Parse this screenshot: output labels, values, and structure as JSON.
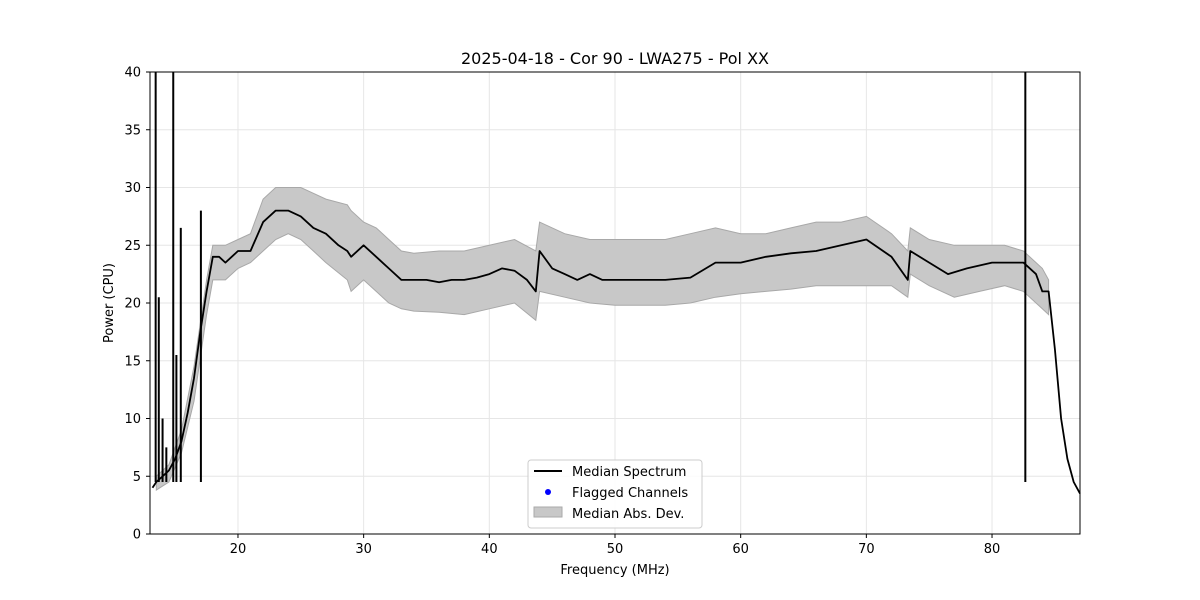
{
  "chart_data": {
    "type": "line",
    "title": "2025-04-18 - Cor 90 - LWA275 - Pol XX",
    "xlabel": "Frequency (MHz)",
    "ylabel": "Power (CPU)",
    "xlim": [
      13.0,
      87.0
    ],
    "ylim": [
      0,
      40
    ],
    "xticks": [
      20,
      30,
      40,
      50,
      60,
      70,
      80
    ],
    "yticks": [
      0,
      5,
      10,
      15,
      20,
      25,
      30,
      35,
      40
    ],
    "grid": true,
    "legend_position": "bottom-center",
    "legend": [
      {
        "label": "Median Spectrum",
        "kind": "line",
        "color": "#000000"
      },
      {
        "label": "Flagged Channels",
        "kind": "marker",
        "color": "#0000ff"
      },
      {
        "label": "Median Abs. Dev.",
        "kind": "patch",
        "color": "#c8c8c8"
      }
    ],
    "series": [
      {
        "name": "Median Spectrum",
        "color": "#000000",
        "x": [
          13.2,
          13.5,
          14.0,
          14.5,
          15.0,
          15.5,
          16.0,
          16.5,
          17.0,
          17.5,
          18.0,
          18.5,
          19.0,
          19.5,
          20.0,
          21.0,
          22.0,
          23.0,
          24.0,
          25.0,
          26.0,
          27.0,
          28.0,
          28.7,
          29.0,
          30.0,
          31.0,
          32.0,
          33.0,
          34.0,
          35.0,
          36.0,
          37.0,
          38.0,
          39.0,
          40.0,
          41.0,
          42.0,
          43.0,
          43.7,
          44.0,
          45.0,
          46.0,
          47.0,
          48.0,
          49.0,
          50.0,
          52.0,
          54.0,
          56.0,
          58.0,
          60.0,
          62.0,
          64.0,
          66.0,
          68.0,
          70.0,
          72.0,
          73.3,
          73.5,
          75.0,
          76.5,
          78.0,
          80.0,
          81.5,
          82.5,
          83.5,
          84.0,
          84.5,
          85.0,
          85.5,
          86.0,
          86.5,
          87.0
        ],
        "y": [
          4.0,
          4.5,
          5.0,
          5.5,
          6.5,
          8.0,
          10.5,
          13.5,
          17.5,
          21.0,
          24.0,
          24.0,
          23.5,
          24.0,
          24.5,
          24.5,
          27.0,
          28.0,
          28.0,
          27.5,
          26.5,
          26.0,
          25.0,
          24.5,
          24.0,
          25.0,
          24.0,
          23.0,
          22.0,
          22.0,
          22.0,
          21.8,
          22.0,
          22.0,
          22.2,
          22.5,
          23.0,
          22.8,
          22.0,
          21.0,
          24.5,
          23.0,
          22.5,
          22.0,
          22.5,
          22.0,
          22.0,
          22.0,
          22.0,
          22.2,
          23.5,
          23.5,
          24.0,
          24.3,
          24.5,
          25.0,
          25.5,
          24.0,
          22.0,
          24.5,
          23.5,
          22.5,
          23.0,
          23.5,
          23.5,
          23.5,
          22.5,
          21.0,
          21.0,
          16.0,
          10.0,
          6.5,
          4.5,
          3.5
        ]
      },
      {
        "name": "Median Abs. Dev. upper",
        "x": [
          13.5,
          14.5,
          15.5,
          16.5,
          17.5,
          18.0,
          19.0,
          20.0,
          21.0,
          22.0,
          23.0,
          24.0,
          25.0,
          26.0,
          27.0,
          28.7,
          29.0,
          30.0,
          31.0,
          32.0,
          33.0,
          34.0,
          36.0,
          38.0,
          40.0,
          42.0,
          43.7,
          44.0,
          46.0,
          48.0,
          50.0,
          52.0,
          54.0,
          56.0,
          58.0,
          60.0,
          62.0,
          64.0,
          66.0,
          68.0,
          70.0,
          72.0,
          73.3,
          73.5,
          75.0,
          77.0,
          79.0,
          81.0,
          82.5,
          84.0,
          84.5
        ],
        "y": [
          5.0,
          6.0,
          9.0,
          14.5,
          22.0,
          25.0,
          25.0,
          25.5,
          26.0,
          29.0,
          30.0,
          30.0,
          30.0,
          29.5,
          29.0,
          28.5,
          28.0,
          27.0,
          26.5,
          25.5,
          24.5,
          24.3,
          24.5,
          24.5,
          25.0,
          25.5,
          24.5,
          27.0,
          26.0,
          25.5,
          25.5,
          25.5,
          25.5,
          26.0,
          26.5,
          26.0,
          26.0,
          26.5,
          27.0,
          27.0,
          27.5,
          26.0,
          24.5,
          26.5,
          25.5,
          25.0,
          25.0,
          25.0,
          24.5,
          23.0,
          22.0
        ]
      },
      {
        "name": "Median Abs. Dev. lower",
        "x": [
          13.5,
          14.5,
          15.5,
          16.5,
          17.5,
          18.0,
          19.0,
          20.0,
          21.0,
          22.0,
          23.0,
          24.0,
          25.0,
          26.0,
          27.0,
          28.7,
          29.0,
          30.0,
          31.0,
          32.0,
          33.0,
          34.0,
          36.0,
          38.0,
          40.0,
          42.0,
          43.7,
          44.0,
          46.0,
          48.0,
          50.0,
          52.0,
          54.0,
          56.0,
          58.0,
          60.0,
          62.0,
          64.0,
          66.0,
          68.0,
          70.0,
          72.0,
          73.3,
          73.5,
          75.0,
          77.0,
          79.0,
          81.0,
          82.5,
          84.0,
          84.5
        ],
        "y": [
          3.8,
          4.5,
          7.0,
          11.5,
          19.0,
          22.0,
          22.0,
          23.0,
          23.5,
          24.5,
          25.5,
          26.0,
          25.5,
          24.5,
          23.5,
          22.0,
          21.0,
          22.0,
          21.0,
          20.0,
          19.5,
          19.3,
          19.2,
          19.0,
          19.5,
          20.0,
          18.5,
          21.0,
          20.5,
          20.0,
          19.8,
          19.8,
          19.8,
          20.0,
          20.5,
          20.8,
          21.0,
          21.2,
          21.5,
          21.5,
          21.5,
          21.5,
          20.5,
          22.5,
          21.5,
          20.5,
          21.0,
          21.5,
          21.0,
          19.5,
          19.0
        ]
      }
    ],
    "spikes": [
      {
        "x": 13.45,
        "y": 40.0
      },
      {
        "x": 13.7,
        "y": 20.5
      },
      {
        "x": 14.0,
        "y": 10.0
      },
      {
        "x": 14.3,
        "y": 7.5
      },
      {
        "x": 14.85,
        "y": 40.0
      },
      {
        "x": 15.1,
        "y": 15.5
      },
      {
        "x": 15.45,
        "y": 26.5
      },
      {
        "x": 17.05,
        "y": 28.0
      },
      {
        "x": 82.65,
        "y": 40.0
      }
    ],
    "flagged_channels": []
  }
}
